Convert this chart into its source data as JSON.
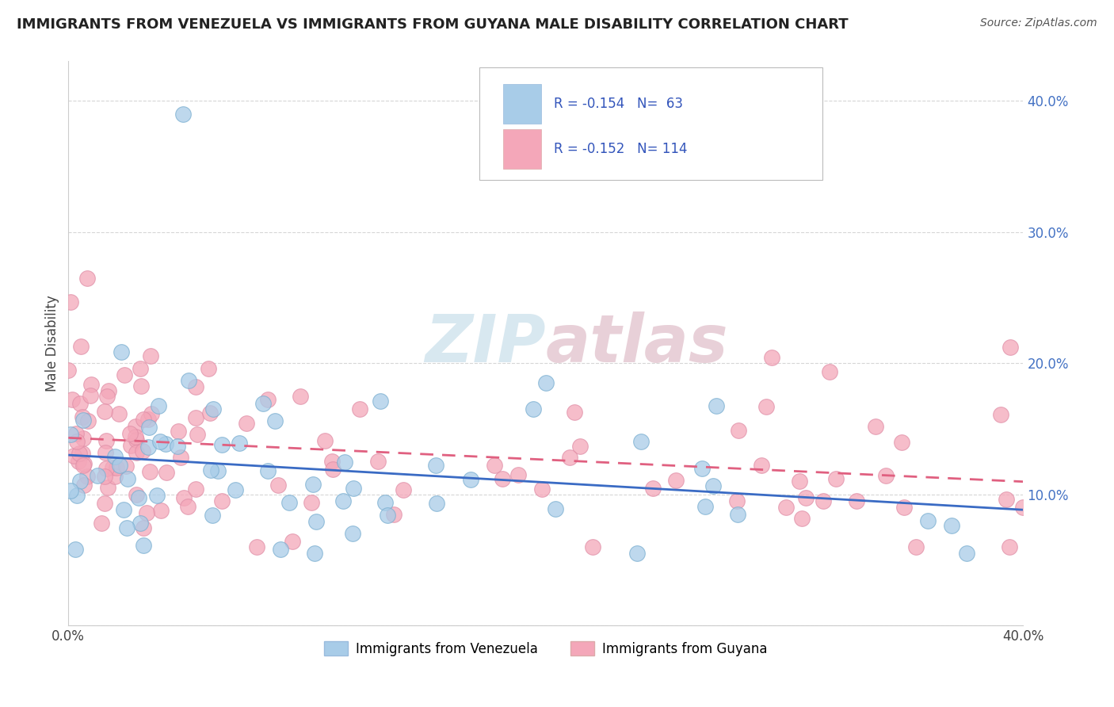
{
  "title": "IMMIGRANTS FROM VENEZUELA VS IMMIGRANTS FROM GUYANA MALE DISABILITY CORRELATION CHART",
  "source": "Source: ZipAtlas.com",
  "ylabel": "Male Disability",
  "xlim": [
    0.0,
    0.4
  ],
  "ylim": [
    0.0,
    0.43
  ],
  "xtick_vals": [
    0.0,
    0.1,
    0.2,
    0.3,
    0.4
  ],
  "ytick_vals": [
    0.0,
    0.1,
    0.2,
    0.3,
    0.4
  ],
  "xtick_labels": [
    "0.0%",
    "",
    "",
    "",
    "40.0%"
  ],
  "ytick_labels": [
    "",
    "10.0%",
    "20.0%",
    "30.0%",
    "40.0%"
  ],
  "venezuela_color": "#a8cce8",
  "guyana_color": "#f4a7b9",
  "venezuela_line_color": "#3a6bc4",
  "guyana_line_color": "#e06080",
  "R_venezuela": -0.154,
  "N_venezuela": 63,
  "R_guyana": -0.152,
  "N_guyana": 114,
  "legend_label_venezuela": "Immigrants from Venezuela",
  "legend_label_guyana": "Immigrants from Guyana",
  "watermark1": "ZIP",
  "watermark2": "atlas"
}
